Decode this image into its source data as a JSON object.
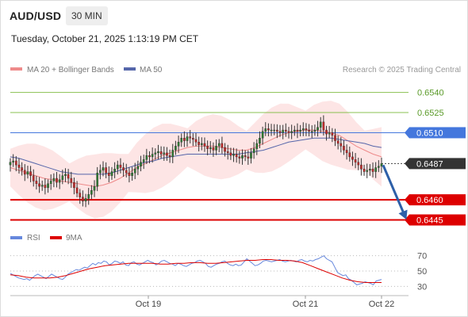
{
  "header": {
    "symbol": "AUD/USD",
    "timeframe": "30 MIN",
    "timestamp": "Tuesday, October 21, 2025 1:13:19 PM CET"
  },
  "legend": {
    "bb_label": "MA 20 + Bollinger Bands",
    "ma50_label": "MA 50",
    "credit": "Research © 2025 Trading Central",
    "rsi_label": "RSI",
    "rsi_ma_label": "9MA"
  },
  "colors": {
    "up": "#2e7d32",
    "down": "#c62828",
    "bb_fill": "#fcdcdc",
    "ma20": "#ee8a8a",
    "ma50": "#5566aa",
    "support": "#dd0000",
    "pivot": "#4477dd",
    "resistance": "#88c050",
    "current": "#333333",
    "arrow": "#2d5fa8",
    "rsi": "#6688dd",
    "rsi_ma": "#dd0000"
  },
  "chart_data": [
    {
      "type": "candlestick",
      "symbol": "AUD/USD",
      "timeframe": "30 MIN",
      "ylim": [
        0.644,
        0.6551
      ],
      "x_tick_labels": [
        "Oct 19",
        "Oct 21",
        "Oct 22"
      ],
      "levels": [
        {
          "label": "0.6540",
          "value": 0.654,
          "kind": "resistance"
        },
        {
          "label": "0.6525",
          "value": 0.6525,
          "kind": "resistance"
        },
        {
          "label": "0.6510",
          "value": 0.651,
          "kind": "pivot"
        },
        {
          "label": "0.6487",
          "value": 0.6487,
          "kind": "current"
        },
        {
          "label": "0.6460",
          "value": 0.646,
          "kind": "support"
        },
        {
          "label": "0.6445",
          "value": 0.6445,
          "kind": "support"
        }
      ],
      "close_series": [
        0.6488,
        0.6489,
        0.6486,
        0.6484,
        0.6482,
        0.6479,
        0.6481,
        0.6478,
        0.6474,
        0.6472,
        0.647,
        0.6471,
        0.6469,
        0.6472,
        0.6474,
        0.6476,
        0.6473,
        0.6475,
        0.6478,
        0.6479,
        0.6476,
        0.6473,
        0.6469,
        0.6465,
        0.6462,
        0.6459,
        0.6461,
        0.6464,
        0.6467,
        0.647,
        0.648,
        0.6482,
        0.6484,
        0.648,
        0.6478,
        0.6481,
        0.6483,
        0.6486,
        0.6484,
        0.6482,
        0.648,
        0.6478,
        0.648,
        0.6483,
        0.6485,
        0.6488,
        0.649,
        0.6493,
        0.6492,
        0.6494,
        0.6495,
        0.6496,
        0.6494,
        0.6495,
        0.6493,
        0.6492,
        0.6497,
        0.65,
        0.6503,
        0.6506,
        0.6504,
        0.6507,
        0.6506,
        0.6505,
        0.6503,
        0.6501,
        0.6502,
        0.65,
        0.6498,
        0.6499,
        0.6497,
        0.65,
        0.6502,
        0.6499,
        0.6496,
        0.6495,
        0.6493,
        0.6494,
        0.6492,
        0.6491,
        0.6493,
        0.6492,
        0.6491,
        0.6495,
        0.6498,
        0.6502,
        0.6506,
        0.6511,
        0.6513,
        0.6512,
        0.6512,
        0.6512,
        0.6511,
        0.651,
        0.6512,
        0.6511,
        0.651,
        0.6511,
        0.6512,
        0.6511,
        0.6512,
        0.6513,
        0.6512,
        0.6511,
        0.6511,
        0.6512,
        0.6514,
        0.6518,
        0.6512,
        0.6509,
        0.651,
        0.6508,
        0.6504,
        0.6502,
        0.65,
        0.6497,
        0.6495,
        0.6492,
        0.649,
        0.6488,
        0.6486,
        0.6483,
        0.6481,
        0.6482,
        0.6483,
        0.6481,
        0.6484,
        0.6485,
        0.6487
      ],
      "ma20_approx": [
        0.6484,
        0.6482,
        0.648,
        0.6478,
        0.6476,
        0.6475,
        0.6474,
        0.6473,
        0.6472,
        0.6471,
        0.647,
        0.6471,
        0.6473,
        0.6476,
        0.648,
        0.6484,
        0.6487,
        0.649,
        0.6493,
        0.6495,
        0.6497,
        0.6499,
        0.65,
        0.65,
        0.65,
        0.6499,
        0.6498,
        0.6497,
        0.6497,
        0.6499,
        0.6502,
        0.6505,
        0.6508,
        0.651,
        0.6511,
        0.6512,
        0.6512,
        0.6511,
        0.651,
        0.6508,
        0.6504,
        0.65,
        0.6497,
        0.6494,
        0.6492
      ],
      "ma50_approx": [
        0.6492,
        0.6491,
        0.6489,
        0.6487,
        0.6485,
        0.6483,
        0.6481,
        0.648,
        0.6479,
        0.6479,
        0.6479,
        0.6479,
        0.648,
        0.6482,
        0.6484,
        0.6486,
        0.6488,
        0.6489,
        0.6491,
        0.6492,
        0.6493,
        0.6494,
        0.6494,
        0.6494,
        0.6494,
        0.6494,
        0.6494,
        0.6494,
        0.6495,
        0.6496,
        0.6497,
        0.6499,
        0.6501,
        0.6503,
        0.6504,
        0.6505,
        0.6506,
        0.6506,
        0.6506,
        0.6505,
        0.6504,
        0.6503,
        0.6502,
        0.65,
        0.6499
      ],
      "forecast_arrow": {
        "from": 0.6487,
        "to": 0.6445
      }
    },
    {
      "type": "line",
      "name": "RSI",
      "y_ticks": [
        70,
        50,
        30
      ],
      "ylim": [
        20,
        80
      ],
      "series": [
        {
          "name": "RSI",
          "values": [
            47,
            45,
            43,
            41,
            40,
            39,
            40,
            38,
            41,
            44,
            46,
            44,
            42,
            40,
            43,
            46,
            44,
            42,
            40,
            39,
            42,
            46,
            48,
            50,
            52,
            51,
            53,
            55,
            54,
            57,
            60,
            58,
            61,
            60,
            63,
            62,
            58,
            60,
            63,
            62,
            60,
            62,
            58,
            57,
            61,
            62,
            59,
            58,
            60,
            62,
            64,
            62,
            61,
            58,
            60,
            63,
            64,
            62,
            60,
            59,
            57,
            60,
            59,
            57,
            56,
            58,
            60,
            61,
            63,
            64,
            62,
            60,
            56,
            55,
            57,
            59,
            60,
            62,
            63,
            60,
            58,
            57,
            59,
            57,
            58,
            62,
            66,
            63,
            60,
            57,
            58,
            60,
            63,
            64,
            63,
            62,
            63,
            64,
            65,
            63,
            62,
            63,
            64,
            63,
            62,
            64,
            65,
            63,
            62,
            64,
            63,
            65,
            66,
            68,
            70,
            66,
            64,
            62,
            55,
            48,
            46,
            44,
            45,
            40,
            38,
            35,
            32,
            33,
            34,
            36,
            35,
            34,
            32,
            37,
            38,
            39
          ]
        },
        {
          "name": "9MA",
          "values": [
            45,
            44,
            42,
            41,
            41,
            41,
            42,
            44,
            47,
            50,
            53,
            55,
            57,
            58,
            59,
            60,
            60,
            60,
            60,
            59,
            59,
            60,
            60,
            61,
            61,
            60,
            60,
            61,
            62,
            63,
            64,
            64,
            65,
            65,
            64,
            64,
            63,
            61,
            57,
            53,
            49,
            45,
            41,
            38,
            36,
            35,
            35,
            35
          ]
        }
      ]
    }
  ]
}
